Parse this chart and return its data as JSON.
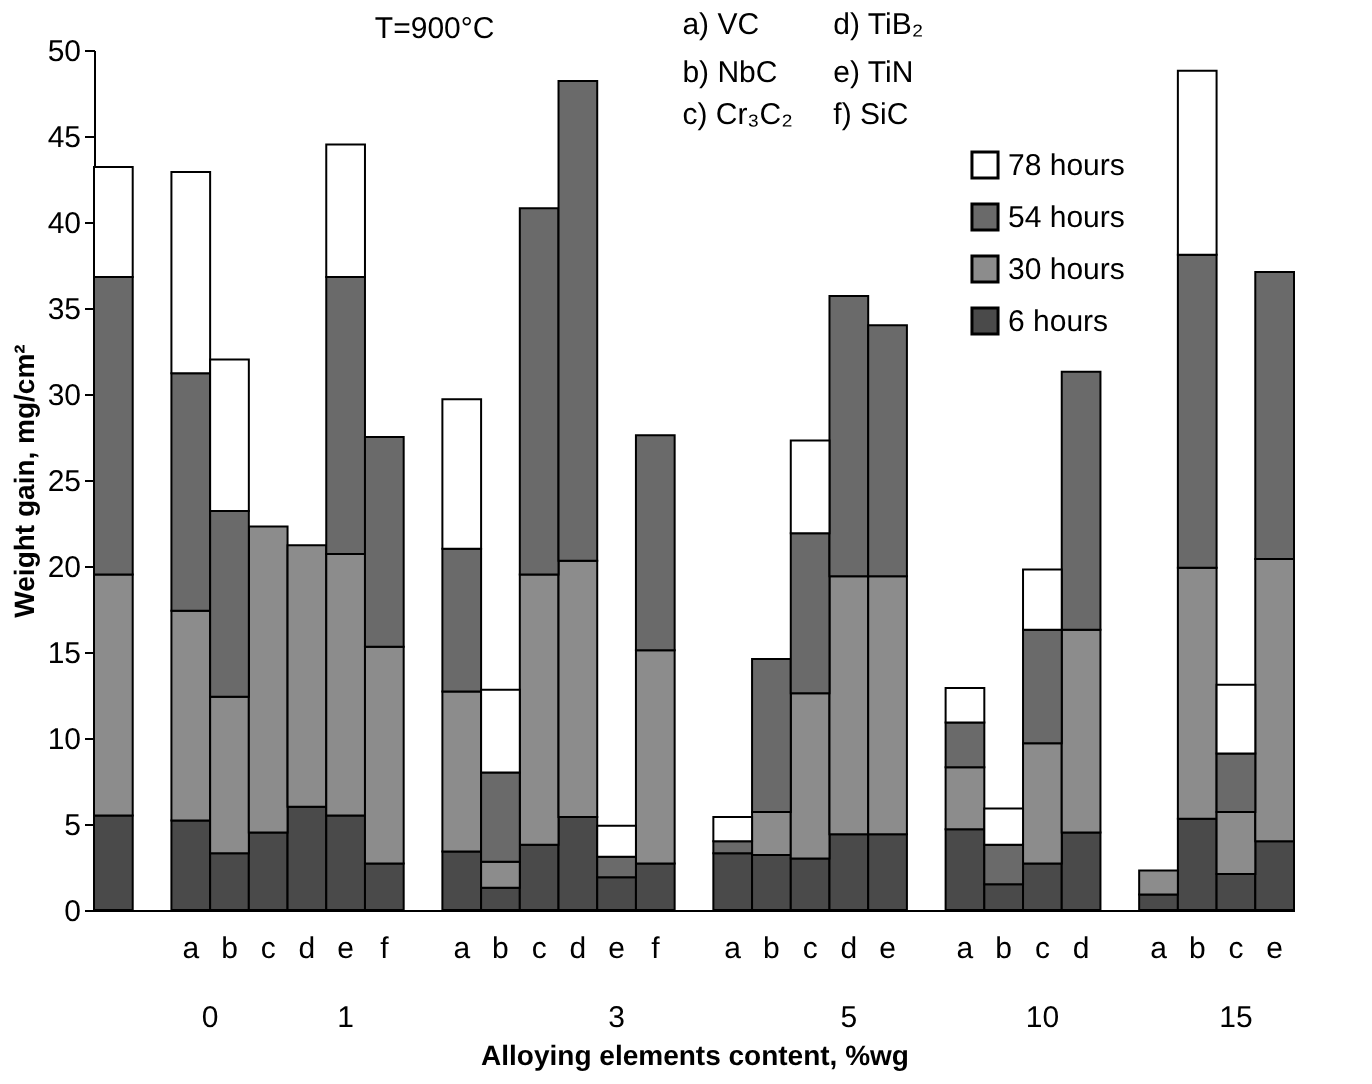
{
  "chart_data": {
    "type": "bar",
    "stacked": true,
    "ylabel": "Weight gain, mg/cm²",
    "xlabel": "Alloying elements content, %wg",
    "categories": [
      null,
      null,
      "a",
      "b",
      "c",
      "d",
      "e",
      "f",
      null,
      "a",
      "b",
      "c",
      "d",
      "e",
      "f",
      null,
      "a",
      "b",
      "c",
      "d",
      "e",
      null,
      "a",
      "b",
      "c",
      "d",
      null,
      "a",
      "b",
      "c",
      "e"
    ],
    "series": [
      {
        "name": "6 hours",
        "color": "#4a4a4a",
        "values": [
          5.5,
          null,
          5.2,
          3.3,
          4.5,
          6.0,
          5.5,
          2.7,
          null,
          3.4,
          1.3,
          3.8,
          5.4,
          1.9,
          2.7,
          null,
          3.3,
          3.2,
          3.0,
          4.4,
          4.4,
          null,
          4.7,
          1.5,
          2.7,
          4.5,
          null,
          0.9,
          5.3,
          2.1,
          4.0
        ]
      },
      {
        "name": "30 hours",
        "color": "#8c8c8c",
        "values": [
          14.0,
          null,
          12.2,
          9.1,
          17.8,
          15.2,
          15.2,
          12.6,
          null,
          9.3,
          1.5,
          15.7,
          14.9,
          null,
          12.4,
          null,
          null,
          2.5,
          9.6,
          15.0,
          15.0,
          null,
          3.6,
          null,
          7.0,
          11.8,
          null,
          1.4,
          14.6,
          3.6,
          16.4
        ]
      },
      {
        "name": "54 hours",
        "color": "#6a6a6a",
        "values": [
          17.3,
          null,
          13.8,
          10.8,
          null,
          null,
          16.1,
          12.2,
          null,
          8.3,
          5.2,
          21.3,
          27.9,
          1.2,
          12.5,
          null,
          0.7,
          8.9,
          9.3,
          16.3,
          14.6,
          null,
          2.6,
          2.3,
          6.6,
          15.0,
          null,
          null,
          18.2,
          3.4,
          16.7
        ]
      },
      {
        "name": "78 hours",
        "color": "#ffffff",
        "values": [
          6.4,
          null,
          11.7,
          8.8,
          null,
          null,
          7.7,
          null,
          null,
          8.7,
          4.8,
          null,
          null,
          1.8,
          null,
          null,
          1.4,
          null,
          5.4,
          null,
          null,
          null,
          2.0,
          2.1,
          3.5,
          null,
          null,
          null,
          10.7,
          4.0,
          null
        ]
      }
    ],
    "ylim": [
      0,
      50
    ],
    "yticks": [
      0,
      5,
      10,
      15,
      20,
      25,
      30,
      35,
      40,
      45,
      50
    ],
    "grid": false,
    "legend": "top right",
    "annotations": [
      "T=900°C",
      "a) VC",
      "b) NbC",
      "c) Cr₃C₂",
      "d) TiB₂",
      "e) TiN",
      "f) SiC",
      "0",
      "1",
      "3",
      "5",
      "10",
      "15"
    ]
  }
}
